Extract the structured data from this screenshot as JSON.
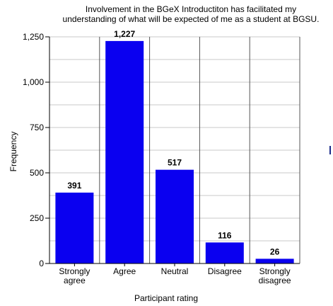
{
  "chart_data": {
    "type": "bar",
    "title_lines": [
      "Involvement in the BGeX Introductiton has facilitated my",
      "understanding of what will be expected of me as a student at BGSU."
    ],
    "xlabel": "Participant rating",
    "ylabel": "Frequency",
    "categories": [
      [
        "Strongly",
        "agree"
      ],
      [
        "Agree"
      ],
      [
        "Neutral"
      ],
      [
        "Disagree"
      ],
      [
        "Strongly",
        "disagree"
      ]
    ],
    "values": [
      391,
      1227,
      517,
      116,
      26
    ],
    "value_labels": [
      "391",
      "1,227",
      "517",
      "116",
      "26"
    ],
    "ylim": [
      0,
      1250
    ],
    "yticks": [
      0,
      250,
      500,
      750,
      1000,
      1250
    ],
    "ytick_labels": [
      "0",
      "250",
      "500",
      "750",
      "1,000",
      "1,250"
    ],
    "minor_step": 125,
    "grid": true,
    "bar_color": "#0a00f0",
    "grid_color": "#c8c8c8"
  }
}
